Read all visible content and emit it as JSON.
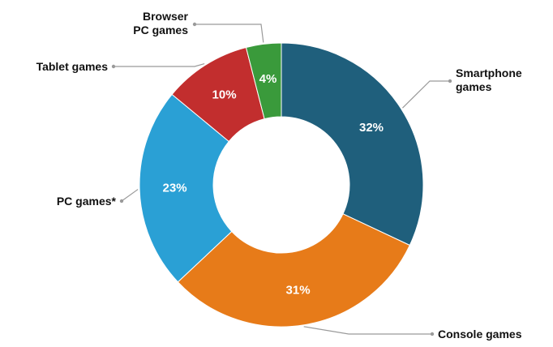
{
  "chart_data": {
    "type": "pie",
    "variant": "donut",
    "categories": [
      "Smartphone games",
      "Console games",
      "PC games*",
      "Tablet games",
      "Browser PC games"
    ],
    "values": [
      32,
      31,
      23,
      10,
      4
    ],
    "unit": "%",
    "colors": [
      "#1f5f7c",
      "#e77b19",
      "#2aa0d5",
      "#c22e2e",
      "#3a9a3b"
    ],
    "labels": [
      {
        "lines": [
          "Smartphone",
          "games"
        ],
        "value_text": "32%"
      },
      {
        "lines": [
          "Console games"
        ],
        "value_text": "31%"
      },
      {
        "lines": [
          "PC games*"
        ],
        "value_text": "23%"
      },
      {
        "lines": [
          "Tablet games"
        ],
        "value_text": "10%"
      },
      {
        "lines": [
          "Browser",
          "PC games"
        ],
        "value_text": "4%"
      }
    ]
  }
}
